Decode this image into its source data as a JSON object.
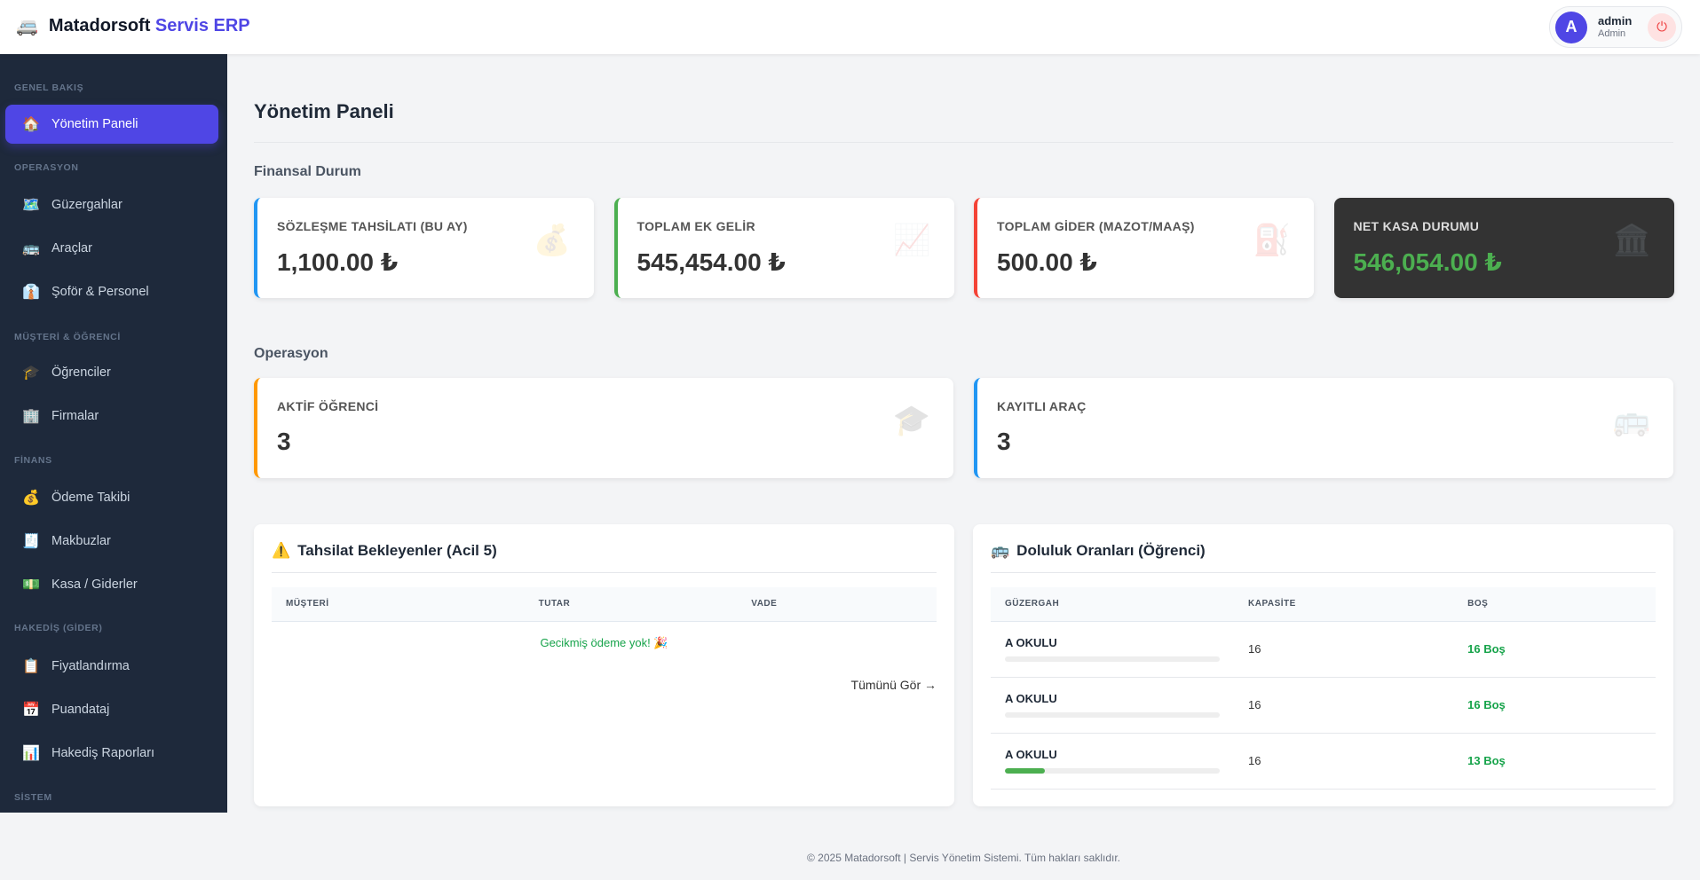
{
  "header": {
    "brand_main": "Matadorsoft",
    "brand_accent": "Servis ERP",
    "brand_icon": "minibus-icon",
    "user_initial": "A",
    "user_name": "admin",
    "user_role": "Admin",
    "logout_icon": "power-icon"
  },
  "sidebar": {
    "sections": [
      "GENEL BAKIŞ",
      "OPERASYON",
      "MÜŞTERİ & ÖĞRENCİ",
      "FİNANS",
      "HAKEDİŞ (GİDER)",
      "SİSTEM"
    ],
    "items": [
      {
        "label": "Yönetim Paneli",
        "icon": "🏠",
        "active": true
      },
      {
        "label": "Güzergahlar",
        "icon": "🗺️"
      },
      {
        "label": "Araçlar",
        "icon": "🚌"
      },
      {
        "label": "Şoför & Personel",
        "icon": "👔"
      },
      {
        "label": "Öğrenciler",
        "icon": "🎓"
      },
      {
        "label": "Firmalar",
        "icon": "🏢"
      },
      {
        "label": "Ödeme Takibi",
        "icon": "💰"
      },
      {
        "label": "Makbuzlar",
        "icon": "🧾"
      },
      {
        "label": "Kasa / Giderler",
        "icon": "💵"
      },
      {
        "label": "Fiyatlandırma",
        "icon": "📋"
      },
      {
        "label": "Puandataj",
        "icon": "📅"
      },
      {
        "label": "Hakediş Raporları",
        "icon": "📊"
      }
    ]
  },
  "main": {
    "title": "Yönetim Paneli",
    "finance_title": "Finansal Durum",
    "finance_cards": [
      {
        "label": "SÖZLEŞME TAHSİLATI (BU AY)",
        "value": "1,100.00 ₺",
        "icon": "💰",
        "color": "#2196f3"
      },
      {
        "label": "TOPLAM EK GELİR",
        "value": "545,454.00 ₺",
        "icon": "📈",
        "color": "#4caf50"
      },
      {
        "label": "TOPLAM GİDER (MAZOT/MAAŞ)",
        "value": "500.00 ₺",
        "icon": "⛽",
        "color": "#f44336"
      },
      {
        "label": "NET KASA DURUMU",
        "value": "546,054.00 ₺",
        "icon": "🏛️",
        "color": "#4caf50"
      }
    ],
    "ops_title": "Operasyon",
    "ops_cards": [
      {
        "label": "AKTİF ÖĞRENCİ",
        "value": "3",
        "icon": "🎓",
        "color": "#ff9800"
      },
      {
        "label": "KAYITLI ARAÇ",
        "value": "3",
        "icon": "🚌",
        "color": "#2196f3"
      }
    ],
    "pending": {
      "icon": "⚠️",
      "title": "Tahsilat Bekleyenler (Acil 5)",
      "columns": [
        "MÜŞTERİ",
        "TUTAR",
        "VADE"
      ],
      "empty": "Gecikmiş ödeme yok! 🎉",
      "more": "Tümünü Gör →"
    },
    "occupancy": {
      "icon": "🚌",
      "title": "Doluluk Oranları (Öğrenci)",
      "columns": [
        "GÜZERGAH",
        "KAPASİTE",
        "BOŞ"
      ],
      "rows": [
        {
          "route": "A OKULU",
          "capacity": "16",
          "free": "16 Boş",
          "fill_percent": 0
        },
        {
          "route": "A OKULU",
          "capacity": "16",
          "free": "16 Boş",
          "fill_percent": 0
        },
        {
          "route": "A OKULU",
          "capacity": "16",
          "free": "13 Boş",
          "fill_percent": 18.75
        }
      ]
    }
  },
  "footer": "© 2025 Matadorsoft | Servis Yönetim Sistemi. Tüm hakları saklıdır."
}
